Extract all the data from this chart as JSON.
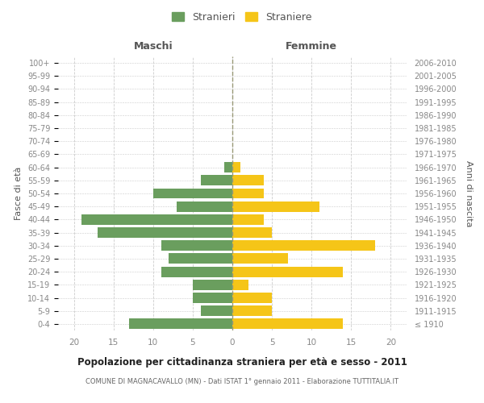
{
  "age_groups": [
    "100+",
    "95-99",
    "90-94",
    "85-89",
    "80-84",
    "75-79",
    "70-74",
    "65-69",
    "60-64",
    "55-59",
    "50-54",
    "45-49",
    "40-44",
    "35-39",
    "30-34",
    "25-29",
    "20-24",
    "15-19",
    "10-14",
    "5-9",
    "0-4"
  ],
  "birth_years": [
    "≤ 1910",
    "1911-1915",
    "1916-1920",
    "1921-1925",
    "1926-1930",
    "1931-1935",
    "1936-1940",
    "1941-1945",
    "1946-1950",
    "1951-1955",
    "1956-1960",
    "1961-1965",
    "1966-1970",
    "1971-1975",
    "1976-1980",
    "1981-1985",
    "1986-1990",
    "1991-1995",
    "1996-2000",
    "2001-2005",
    "2006-2010"
  ],
  "males": [
    0,
    0,
    0,
    0,
    0,
    0,
    0,
    0,
    1,
    4,
    10,
    7,
    19,
    17,
    9,
    8,
    9,
    5,
    5,
    4,
    13
  ],
  "females": [
    0,
    0,
    0,
    0,
    0,
    0,
    0,
    0,
    1,
    4,
    4,
    11,
    4,
    5,
    18,
    7,
    14,
    2,
    5,
    5,
    14
  ],
  "male_color": "#6a9e5e",
  "female_color": "#f5c518",
  "male_label": "Stranieri",
  "female_label": "Straniere",
  "title": "Popolazione per cittadinanza straniera per età e sesso - 2011",
  "subtitle": "COMUNE DI MAGNACAVALLO (MN) - Dati ISTAT 1° gennaio 2011 - Elaborazione TUTTITALIA.IT",
  "ylabel_left": "Fasce di età",
  "ylabel_right": "Anni di nascita",
  "xlabel_left": "Maschi",
  "xlabel_right": "Femmine",
  "xlim": 22,
  "background_color": "#ffffff",
  "grid_color": "#cccccc",
  "bar_height": 0.8
}
